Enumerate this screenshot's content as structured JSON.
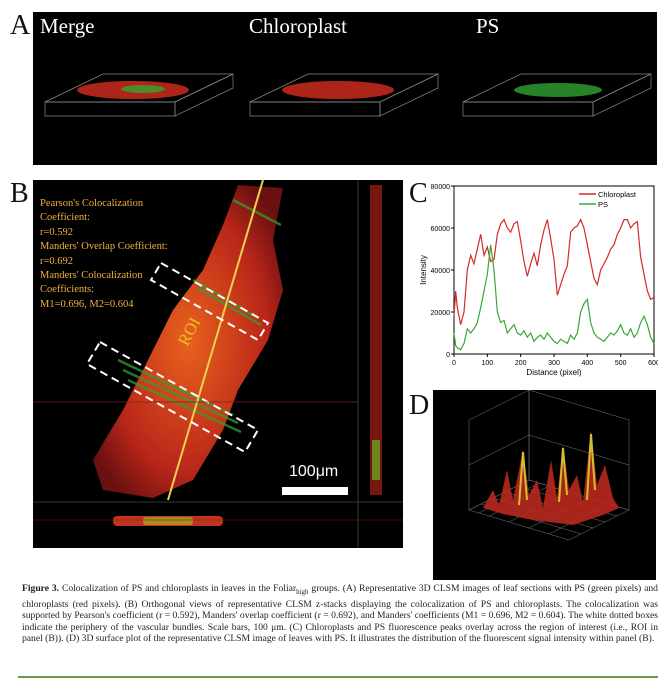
{
  "panel_a": {
    "letter": "A",
    "labels": [
      "Merge",
      "Chloroplast",
      "PS"
    ]
  },
  "panel_b": {
    "letter": "B",
    "stats_text": "Pearson's Colocalization\nCoefficient:\nr=0.592\nManders' Overlap Coefficient:\nr=0.692\nManders' Colocalization\nCoefficients:\nM1=0.696, M2=0.604",
    "roi_label": "ROI",
    "scale_bar": "100μm"
  },
  "panel_c": {
    "letter": "C"
  },
  "panel_d": {
    "letter": "D"
  },
  "chart_data": {
    "type": "line",
    "title": "",
    "xlabel": "Distance (pixel)",
    "ylabel": "Intensity",
    "xlim": [
      0,
      600
    ],
    "ylim": [
      0,
      80000
    ],
    "xticks": [
      "0",
      "100",
      "200",
      "300",
      "400",
      "500",
      "600"
    ],
    "yticks": [
      "0",
      "20000",
      "40000",
      "60000",
      "80000"
    ],
    "legend": "top-right",
    "series": [
      {
        "name": "Chloroplast",
        "color": "#d42a2a",
        "x": [
          0,
          5,
          10,
          20,
          30,
          40,
          50,
          60,
          70,
          80,
          90,
          100,
          110,
          120,
          130,
          140,
          150,
          160,
          170,
          180,
          190,
          200,
          210,
          220,
          230,
          240,
          250,
          260,
          270,
          280,
          290,
          300,
          310,
          320,
          330,
          340,
          350,
          360,
          370,
          380,
          390,
          400,
          410,
          420,
          430,
          440,
          450,
          460,
          470,
          480,
          490,
          500,
          510,
          520,
          530,
          540,
          550,
          560,
          570,
          580,
          590,
          600
        ],
        "values": [
          18000,
          30000,
          22000,
          14000,
          20000,
          40000,
          47000,
          43000,
          50000,
          57000,
          47000,
          51000,
          44000,
          45000,
          57000,
          62000,
          64000,
          60000,
          58000,
          62000,
          63000,
          54000,
          44000,
          37000,
          43000,
          48000,
          42000,
          52000,
          59000,
          64000,
          55000,
          45000,
          28000,
          33000,
          38000,
          42000,
          58000,
          60000,
          61000,
          64000,
          60000,
          52000,
          44000,
          36000,
          33000,
          40000,
          43000,
          46000,
          50000,
          52000,
          57000,
          60000,
          64000,
          64000,
          60000,
          62000,
          63000,
          46000,
          38000,
          30000,
          26000,
          27000
        ]
      },
      {
        "name": "PS",
        "color": "#3aa63a",
        "x": [
          0,
          5,
          10,
          20,
          30,
          40,
          50,
          60,
          70,
          80,
          90,
          100,
          110,
          120,
          130,
          140,
          150,
          160,
          170,
          180,
          190,
          200,
          210,
          220,
          230,
          240,
          250,
          260,
          270,
          280,
          290,
          300,
          310,
          320,
          330,
          340,
          350,
          360,
          370,
          380,
          390,
          400,
          410,
          420,
          430,
          440,
          450,
          460,
          470,
          480,
          490,
          500,
          510,
          520,
          530,
          540,
          550,
          560,
          570,
          580,
          590,
          600
        ],
        "values": [
          10000,
          4000,
          3000,
          2000,
          5000,
          12000,
          10000,
          12000,
          15000,
          22000,
          30000,
          38000,
          52000,
          40000,
          20000,
          15000,
          16000,
          10000,
          12000,
          14000,
          10000,
          9000,
          11000,
          8000,
          10000,
          6000,
          8000,
          9000,
          7000,
          10000,
          8000,
          6000,
          5000,
          7000,
          6000,
          5000,
          9000,
          7000,
          10000,
          20000,
          24000,
          26000,
          15000,
          10000,
          8000,
          7000,
          6000,
          8000,
          10000,
          9000,
          11000,
          14000,
          10000,
          9000,
          12000,
          8000,
          10000,
          15000,
          18000,
          14000,
          8000,
          5000
        ]
      }
    ]
  },
  "caption": {
    "figure_label": "Figure 3.",
    "part1": "Colocalization of PS and chloroplasts in leaves in the Foliar",
    "subscript": "high",
    "part2": " groups. (A) Representative 3D CLSM images of leaf sections with PS (green pixels) and chloroplasts (red pixels). (B) Orthogonal views of representative CLSM z-stacks displaying the colocalization of PS and chloroplasts. The colocalization was supported by Pearson's coefficient (r = 0.592), Manders' overlap coefficient (r = 0.692), and Manders' coefficients (M1 = 0.696, M2 = 0.604). The white dotted boxes indicate the periphery of the vascular bundles. Scale bars, 100 μm. (C) Chloroplasts and PS fluorescence peaks overlay across the region of interest (i.e., ROI in panel (B)). (D) 3D surface plot of the representative CLSM image of leaves with PS. It illustrates the distribution of the fluorescent signal intensity within panel (B)."
  }
}
